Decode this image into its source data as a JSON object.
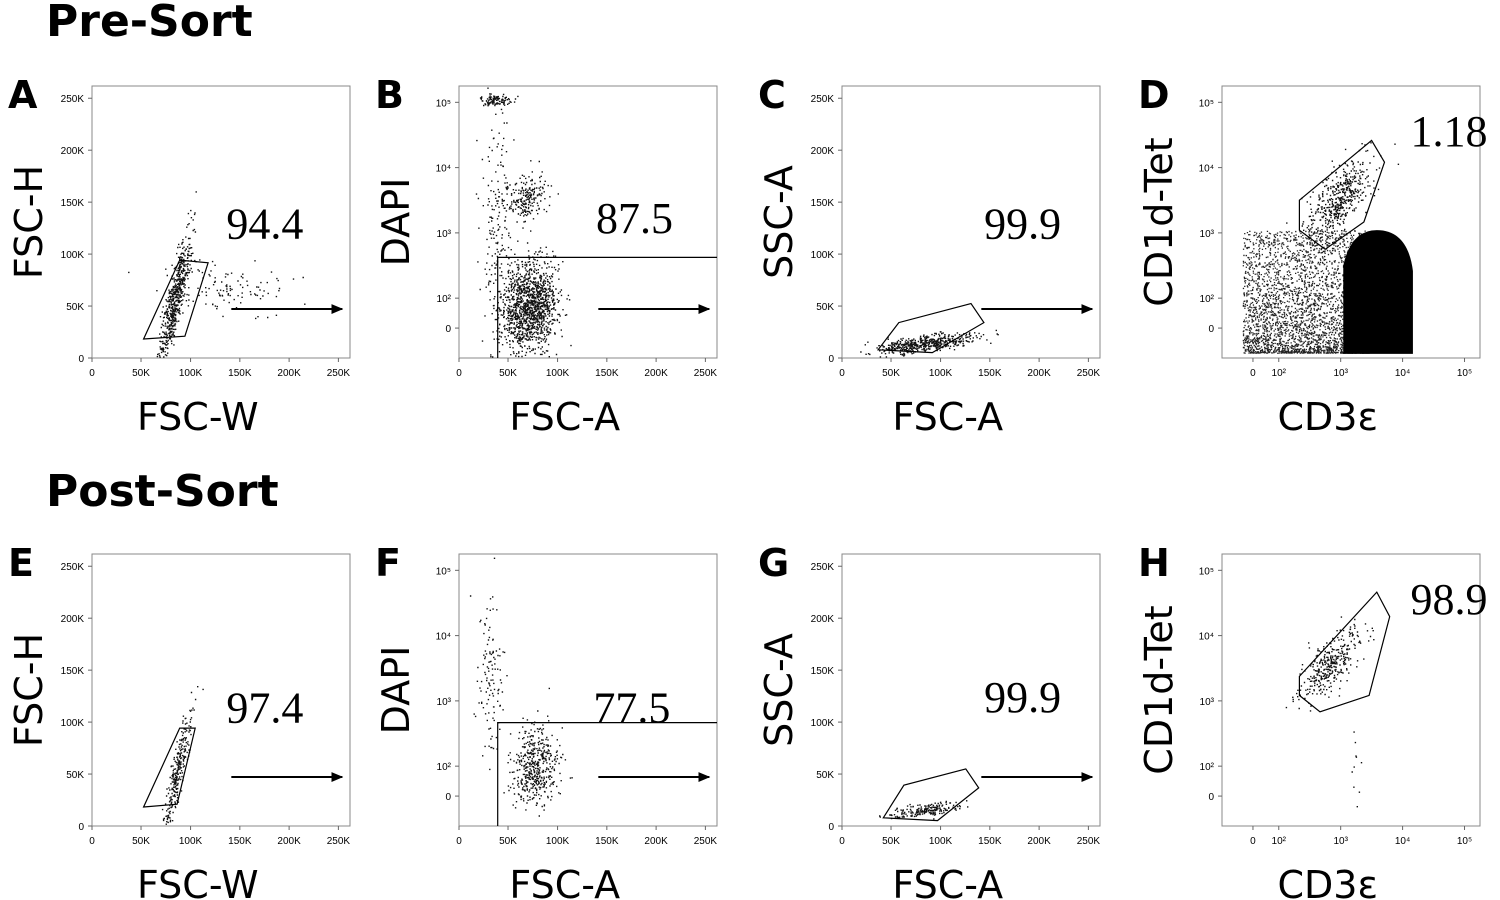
{
  "sections": [
    {
      "title": "Pre-Sort",
      "row": 0
    },
    {
      "title": "Post-Sort",
      "row": 1
    }
  ],
  "chart_data": [
    {
      "type": "scatter",
      "panel": "A",
      "row": 0,
      "col": 0,
      "xlabel": "FSC-W",
      "ylabel": "FSC-H",
      "scale": "linear",
      "xlim": [
        0,
        262144
      ],
      "ylim": [
        0,
        262144
      ],
      "xticks": [
        "0",
        "50K",
        "100K",
        "150K",
        "200K",
        "250K"
      ],
      "yticks": [
        "0",
        "50K",
        "100K",
        "150K",
        "200K",
        "250K"
      ],
      "gate": "polygon",
      "gate_percent": "94.4",
      "arrow": true
    },
    {
      "type": "scatter",
      "panel": "B",
      "row": 0,
      "col": 1,
      "xlabel": "FSC-A",
      "ylabel": "DAPI",
      "scale": "linear-x log-y",
      "xlim": [
        0,
        262144
      ],
      "xticks": [
        "0",
        "50K",
        "100K",
        "150K",
        "200K",
        "250K"
      ],
      "yticks": [
        "0",
        "10²",
        "10³",
        "10⁴",
        "10⁵"
      ],
      "gate": "rectangle",
      "gate_percent": "87.5",
      "arrow": true
    },
    {
      "type": "scatter",
      "panel": "C",
      "row": 0,
      "col": 2,
      "xlabel": "FSC-A",
      "ylabel": "SSC-A",
      "scale": "linear",
      "xlim": [
        0,
        262144
      ],
      "ylim": [
        0,
        262144
      ],
      "xticks": [
        "0",
        "50K",
        "100K",
        "150K",
        "200K",
        "250K"
      ],
      "yticks": [
        "0",
        "50K",
        "100K",
        "150K",
        "200K",
        "250K"
      ],
      "gate": "polygon",
      "gate_percent": "99.9",
      "arrow": true
    },
    {
      "type": "scatter",
      "panel": "D",
      "row": 0,
      "col": 3,
      "xlabel": "CD3ε",
      "ylabel": "CD1d-Tet",
      "scale": "log",
      "xticks": [
        "0",
        "10²",
        "10³",
        "10⁴",
        "10⁵"
      ],
      "yticks": [
        "0",
        "10²",
        "10³",
        "10⁴",
        "10⁵"
      ],
      "gate": "polygon",
      "gate_percent": "1.18",
      "arrow": false
    },
    {
      "type": "scatter",
      "panel": "E",
      "row": 1,
      "col": 0,
      "xlabel": "FSC-W",
      "ylabel": "FSC-H",
      "scale": "linear",
      "xlim": [
        0,
        262144
      ],
      "ylim": [
        0,
        262144
      ],
      "xticks": [
        "0",
        "50K",
        "100K",
        "150K",
        "200K",
        "250K"
      ],
      "yticks": [
        "0",
        "50K",
        "100K",
        "150K",
        "200K",
        "250K"
      ],
      "gate": "polygon",
      "gate_percent": "97.4",
      "arrow": true
    },
    {
      "type": "scatter",
      "panel": "F",
      "row": 1,
      "col": 1,
      "xlabel": "FSC-A",
      "ylabel": "DAPI",
      "scale": "linear-x log-y",
      "xlim": [
        0,
        262144
      ],
      "xticks": [
        "0",
        "50K",
        "100K",
        "150K",
        "200K",
        "250K"
      ],
      "yticks": [
        "0",
        "10²",
        "10³",
        "10⁴",
        "10⁵"
      ],
      "gate": "rectangle",
      "gate_percent": "77.5",
      "arrow": true
    },
    {
      "type": "scatter",
      "panel": "G",
      "row": 1,
      "col": 2,
      "xlabel": "FSC-A",
      "ylabel": "SSC-A",
      "scale": "linear",
      "xlim": [
        0,
        262144
      ],
      "ylim": [
        0,
        262144
      ],
      "xticks": [
        "0",
        "50K",
        "100K",
        "150K",
        "200K",
        "250K"
      ],
      "yticks": [
        "0",
        "50K",
        "100K",
        "150K",
        "200K",
        "250K"
      ],
      "gate": "polygon",
      "gate_percent": "99.9",
      "arrow": true
    },
    {
      "type": "scatter",
      "panel": "H",
      "row": 1,
      "col": 3,
      "xlabel": "CD3ε",
      "ylabel": "CD1d-Tet",
      "scale": "log",
      "xticks": [
        "0",
        "10²",
        "10³",
        "10⁴",
        "10⁵"
      ],
      "yticks": [
        "0",
        "10²",
        "10³",
        "10⁴",
        "10⁵"
      ],
      "gate": "polygon",
      "gate_percent": "98.9",
      "arrow": false
    }
  ]
}
